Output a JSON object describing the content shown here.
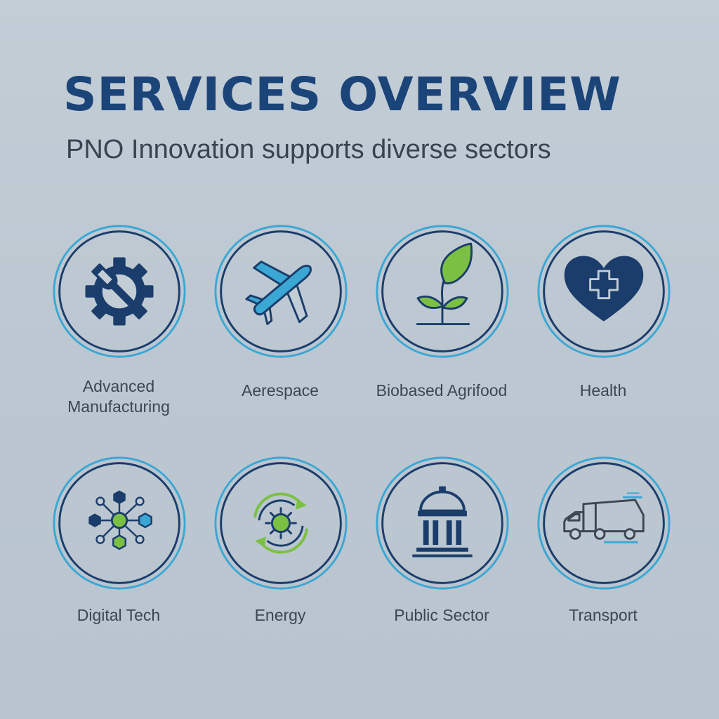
{
  "header": {
    "title": "SERVICES OVERVIEW",
    "subtitle": "PNO Innovation supports diverse sectors"
  },
  "colors": {
    "navy": "#1b3d6b",
    "accent_blue": "#3aa7d4",
    "accent_green": "#7cc043",
    "background": "#c3cdd6"
  },
  "sectors": [
    {
      "label_line1": "Advanced",
      "label_line2": "Manufacturing",
      "icon": "gear-wrench-icon"
    },
    {
      "label": "Aerespace",
      "icon": "airplane-icon"
    },
    {
      "label": "Biobased Agrifood",
      "icon": "sprout-icon"
    },
    {
      "label": "Health",
      "icon": "heart-cross-icon"
    },
    {
      "label": "Digital Tech",
      "icon": "network-nodes-icon"
    },
    {
      "label": "Energy",
      "icon": "energy-cycle-icon"
    },
    {
      "label": "Public Sector",
      "icon": "government-building-icon"
    },
    {
      "label": "Transport",
      "icon": "truck-icon"
    }
  ]
}
